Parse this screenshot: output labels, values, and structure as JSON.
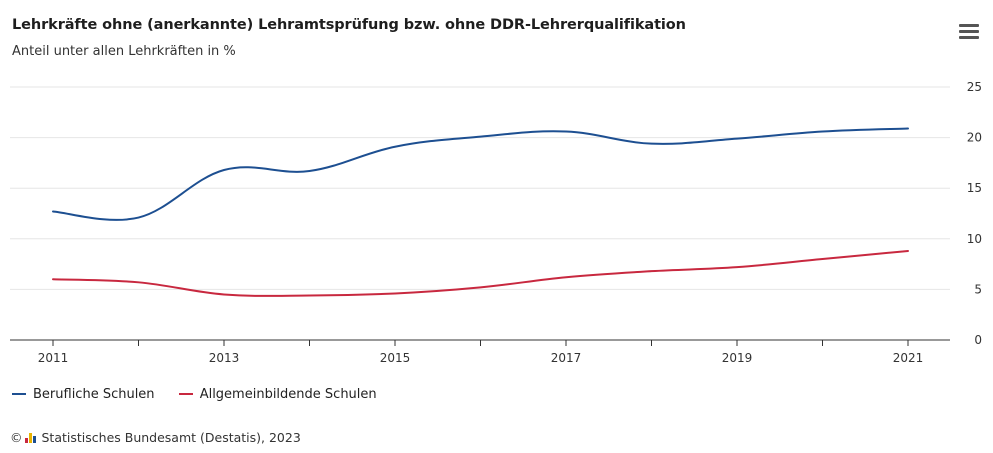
{
  "header": {
    "title": "Lehrkräfte ohne (anerkannte) Lehramtsprüfung bzw. ohne DDR-Lehrerqualifikation",
    "subtitle": "Anteil unter allen Lehrkräften in %"
  },
  "menu": {
    "icon": "hamburger-menu-icon"
  },
  "legend": [
    {
      "label": "Berufliche Schulen",
      "color": "#1d4f91"
    },
    {
      "label": "Allgemeinbildende Schulen",
      "color": "#c8283f"
    }
  ],
  "source": {
    "copyright": "©",
    "text": "Statistisches Bundesamt (Destatis), 2023",
    "logo_colors": [
      "#c8283f",
      "#e9b300",
      "#1d4f91"
    ]
  },
  "chart_data": {
    "type": "line",
    "title": "Lehrkräfte ohne (anerkannte) Lehramtsprüfung bzw. ohne DDR-Lehrerqualifikation",
    "subtitle": "Anteil unter allen Lehrkräften in %",
    "x": [
      2011,
      2012,
      2013,
      2014,
      2015,
      2016,
      2017,
      2018,
      2019,
      2020,
      2021
    ],
    "x_ticks": [
      2011,
      2013,
      2015,
      2017,
      2019,
      2021
    ],
    "y_ticks": [
      0,
      5,
      10,
      15,
      20,
      25
    ],
    "ylim": [
      0,
      25
    ],
    "y_axis_side": "right",
    "grid": "horizontal",
    "legend_position": "bottom-left",
    "series": [
      {
        "name": "Berufliche Schulen",
        "color": "#1d4f91",
        "values": [
          12.7,
          12.1,
          16.8,
          16.7,
          19.1,
          20.1,
          20.6,
          19.4,
          19.9,
          20.6,
          20.9
        ]
      },
      {
        "name": "Allgemeinbildende Schulen",
        "color": "#c8283f",
        "values": [
          6.0,
          5.7,
          4.5,
          4.4,
          4.6,
          5.2,
          6.2,
          6.8,
          7.2,
          8.0,
          8.8
        ]
      }
    ]
  }
}
